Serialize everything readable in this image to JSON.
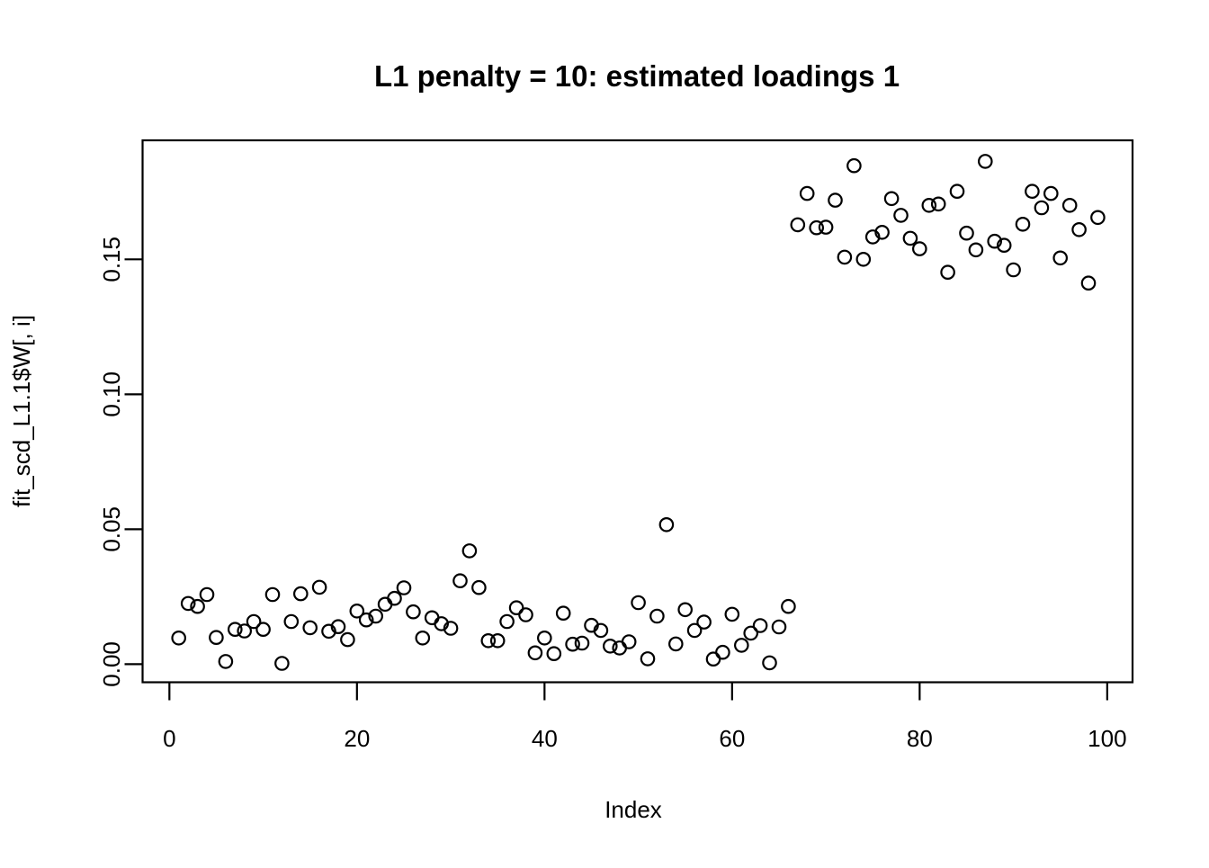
{
  "figure": {
    "background": "#ffffff",
    "foreground": "#000000"
  },
  "chart_data": {
    "type": "scatter",
    "title": "L1 penalty = 10: estimated loadings 1",
    "xlabel": "Index",
    "ylabel": "fit_scd_L1.1$W[, i]",
    "legend": null,
    "grid": false,
    "marker": {
      "shape": "open-circle",
      "color": "#000000",
      "radius_px": 7.2,
      "stroke_px": 2.2
    },
    "axes": {
      "xlim": [
        -2.86,
        102.7
      ],
      "ylim": [
        -0.0067,
        0.1941
      ],
      "xticks": [
        0,
        20,
        40,
        60,
        80,
        100
      ],
      "xtick_labels": [
        "0",
        "20",
        "40",
        "60",
        "80",
        "100"
      ],
      "yticks": [
        0,
        0.05,
        0.1,
        0.15
      ],
      "ytick_labels": [
        "0.00",
        "0.05",
        "0.10",
        "0.15"
      ]
    },
    "points": [
      [
        1,
        0.0097
      ],
      [
        2,
        0.0225
      ],
      [
        3,
        0.0214
      ],
      [
        4,
        0.0258
      ],
      [
        5,
        0.0099
      ],
      [
        6,
        0.001
      ],
      [
        7,
        0.0129
      ],
      [
        8,
        0.0123
      ],
      [
        9,
        0.0158
      ],
      [
        10,
        0.0129
      ],
      [
        11,
        0.0258
      ],
      [
        12,
        0.0003
      ],
      [
        13,
        0.0158
      ],
      [
        14,
        0.0261
      ],
      [
        15,
        0.0135
      ],
      [
        16,
        0.0285
      ],
      [
        17,
        0.0122
      ],
      [
        18,
        0.0139
      ],
      [
        19,
        0.0091
      ],
      [
        20,
        0.0197
      ],
      [
        21,
        0.0164
      ],
      [
        22,
        0.0178
      ],
      [
        23,
        0.0222
      ],
      [
        24,
        0.0244
      ],
      [
        25,
        0.0283
      ],
      [
        26,
        0.0194
      ],
      [
        27,
        0.0097
      ],
      [
        28,
        0.0172
      ],
      [
        29,
        0.015
      ],
      [
        30,
        0.0133
      ],
      [
        31,
        0.0309
      ],
      [
        32,
        0.042
      ],
      [
        33,
        0.0284
      ],
      [
        34,
        0.0087
      ],
      [
        35,
        0.0087
      ],
      [
        36,
        0.0158
      ],
      [
        37,
        0.0209
      ],
      [
        38,
        0.0183
      ],
      [
        39,
        0.0042
      ],
      [
        40,
        0.0097
      ],
      [
        41,
        0.0039
      ],
      [
        42,
        0.0189
      ],
      [
        43,
        0.0074
      ],
      [
        44,
        0.0078
      ],
      [
        45,
        0.0144
      ],
      [
        46,
        0.0125
      ],
      [
        47,
        0.0067
      ],
      [
        48,
        0.006
      ],
      [
        49,
        0.0083
      ],
      [
        50,
        0.0228
      ],
      [
        51,
        0.002
      ],
      [
        52,
        0.0178
      ],
      [
        53,
        0.0517
      ],
      [
        54,
        0.0075
      ],
      [
        55,
        0.0202
      ],
      [
        56,
        0.0125
      ],
      [
        57,
        0.0156
      ],
      [
        58,
        0.0019
      ],
      [
        59,
        0.0044
      ],
      [
        60,
        0.0185
      ],
      [
        61,
        0.007
      ],
      [
        62,
        0.0115
      ],
      [
        63,
        0.0143
      ],
      [
        64,
        0.0005
      ],
      [
        65,
        0.0138
      ],
      [
        66,
        0.0214
      ],
      [
        67,
        0.1628
      ],
      [
        68,
        0.1744
      ],
      [
        69,
        0.1617
      ],
      [
        70,
        0.1619
      ],
      [
        71,
        0.1719
      ],
      [
        72,
        0.1508
      ],
      [
        73,
        0.1847
      ],
      [
        74,
        0.15
      ],
      [
        75,
        0.1583
      ],
      [
        76,
        0.16
      ],
      [
        77,
        0.1725
      ],
      [
        78,
        0.1663
      ],
      [
        79,
        0.1578
      ],
      [
        80,
        0.1539
      ],
      [
        81,
        0.17
      ],
      [
        82,
        0.1705
      ],
      [
        83,
        0.1452
      ],
      [
        84,
        0.1752
      ],
      [
        85,
        0.1597
      ],
      [
        86,
        0.1535
      ],
      [
        87,
        0.1863
      ],
      [
        88,
        0.1567
      ],
      [
        89,
        0.1552
      ],
      [
        90,
        0.1461
      ],
      [
        91,
        0.163
      ],
      [
        92,
        0.1752
      ],
      [
        93,
        0.1691
      ],
      [
        94,
        0.1744
      ],
      [
        95,
        0.1505
      ],
      [
        96,
        0.17
      ],
      [
        97,
        0.161
      ],
      [
        98,
        0.1412
      ],
      [
        99,
        0.1655
      ]
    ]
  }
}
